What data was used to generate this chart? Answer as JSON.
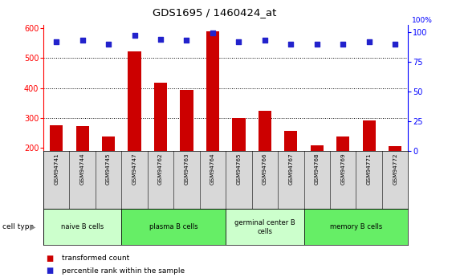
{
  "title": "GDS1695 / 1460424_at",
  "samples": [
    "GSM94741",
    "GSM94744",
    "GSM94745",
    "GSM94747",
    "GSM94762",
    "GSM94763",
    "GSM94764",
    "GSM94765",
    "GSM94766",
    "GSM94767",
    "GSM94768",
    "GSM94769",
    "GSM94771",
    "GSM94772"
  ],
  "transformed_counts": [
    275,
    273,
    237,
    521,
    418,
    393,
    590,
    300,
    323,
    258,
    209,
    238,
    291,
    207
  ],
  "percentile_ranks": [
    92,
    93,
    90,
    97,
    94,
    93,
    99,
    92,
    93,
    90,
    90,
    90,
    92,
    90
  ],
  "cell_type_groups": [
    {
      "label": "naive B cells",
      "start": 0,
      "end": 3,
      "color": "#ccffcc"
    },
    {
      "label": "plasma B cells",
      "start": 3,
      "end": 7,
      "color": "#66ee66"
    },
    {
      "label": "germinal center B\ncells",
      "start": 7,
      "end": 10,
      "color": "#ccffcc"
    },
    {
      "label": "memory B cells",
      "start": 10,
      "end": 14,
      "color": "#66ee66"
    }
  ],
  "ylim_left": [
    190,
    610
  ],
  "ylim_right": [
    0,
    106
  ],
  "yticks_left": [
    200,
    300,
    400,
    500,
    600
  ],
  "yticks_right": [
    0,
    25,
    50,
    75,
    100
  ],
  "bar_color": "#cc0000",
  "dot_color": "#2222cc",
  "bar_bottom": 190,
  "background_color": "#d8d8d8",
  "gridlines": [
    300,
    400,
    500
  ]
}
